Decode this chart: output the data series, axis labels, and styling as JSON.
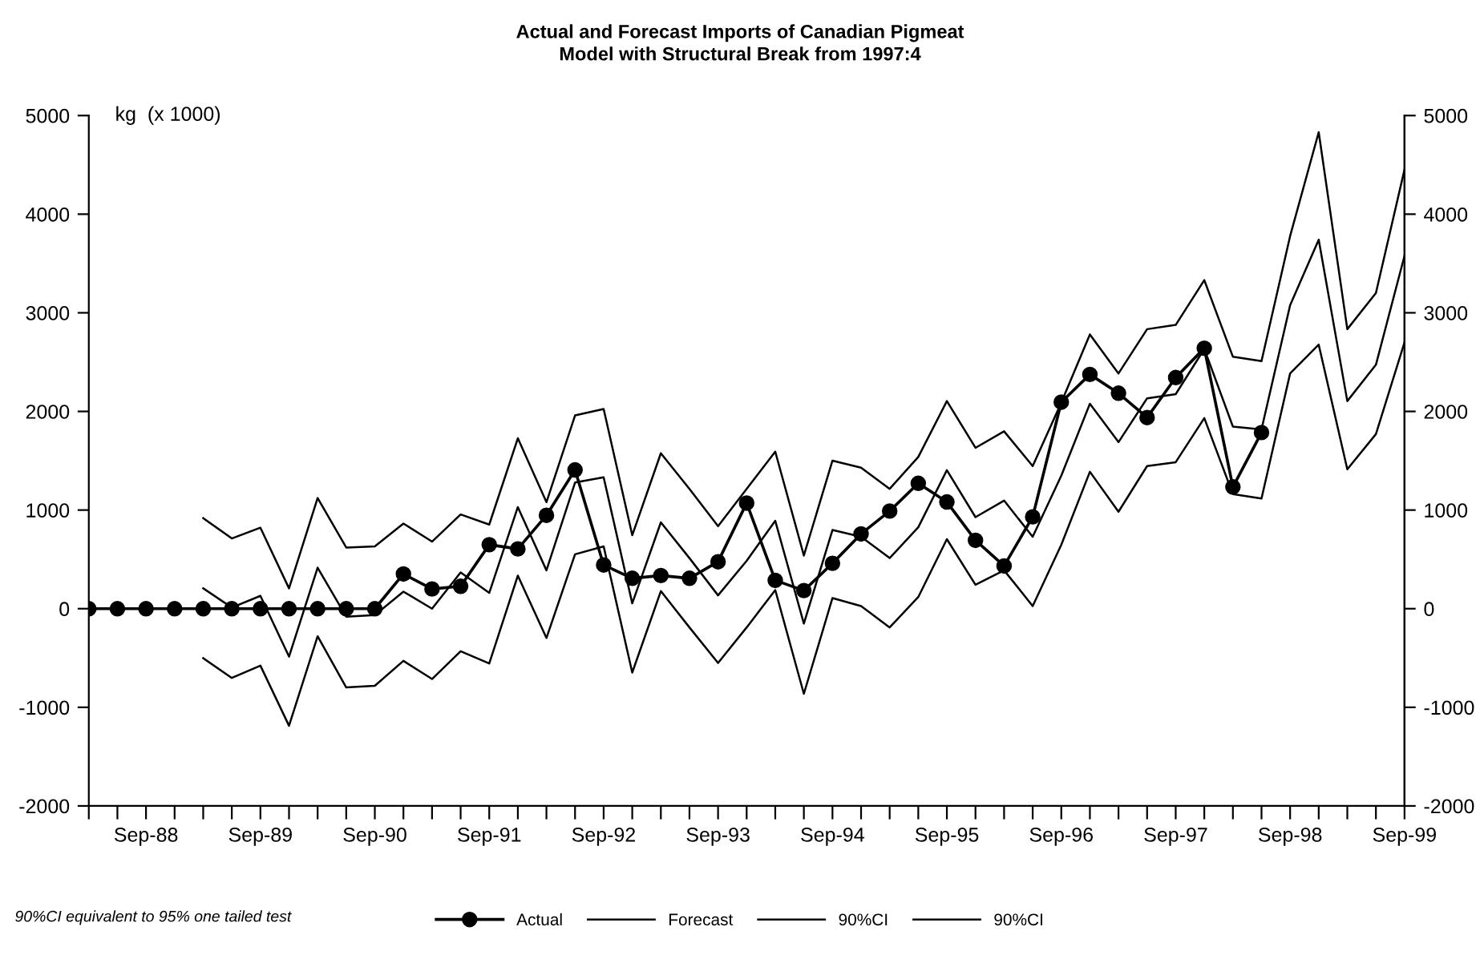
{
  "chart_data": {
    "type": "line",
    "title": "Actual and Forecast Imports of Canadian Pigmeat",
    "subtitle": "Model with Structural Break from 1997:4",
    "ylabel": "kg  (x 1000)",
    "annotations": [
      "90%CI equivalent to 95% one tailed test"
    ],
    "categories": [
      null,
      null,
      "Sep-88",
      null,
      null,
      null,
      "Sep-89",
      null,
      null,
      null,
      "Sep-90",
      null,
      null,
      null,
      "Sep-91",
      null,
      null,
      null,
      "Sep-92",
      null,
      null,
      null,
      "Sep-93",
      null,
      null,
      null,
      "Sep-94",
      null,
      null,
      null,
      "Sep-95",
      null,
      null,
      null,
      "Sep-96",
      null,
      null,
      null,
      "Sep-97",
      null,
      null,
      null,
      "Sep-98",
      null,
      null,
      null,
      "Sep-99"
    ],
    "series": [
      {
        "name": "Actual",
        "color": "#000000",
        "marker": "circle",
        "values": [
          0,
          0,
          0,
          0,
          0,
          0,
          0,
          0,
          0,
          0,
          0,
          352,
          200,
          227,
          649,
          606,
          947,
          1407,
          443,
          308,
          336,
          308,
          476,
          1071,
          287,
          184,
          460,
          758,
          990,
          1271,
          1082,
          693,
          433,
          931,
          2094,
          2375,
          2185,
          1938,
          2343,
          2641,
          1234,
          1786,
          null,
          null,
          null,
          null,
          null
        ]
      },
      {
        "name": "Forecast",
        "color": "#000000",
        "values": [
          null,
          null,
          null,
          null,
          206,
          11,
          130,
          -486,
          416,
          -81,
          -65,
          173,
          0,
          368,
          160,
          1030,
          389,
          1279,
          1333,
          54,
          875,
          513,
          135,
          486,
          891,
          -151,
          798,
          729,
          513,
          826,
          1404,
          928,
          1096,
          729,
          1349,
          2078,
          1689,
          2133,
          2175,
          2634,
          1846,
          1818,
          3077,
          3741,
          2105,
          2473,
          3579
        ]
      },
      {
        "name": "90%CI",
        "color": "#000000",
        "values": [
          null,
          null,
          null,
          null,
          918,
          712,
          821,
          206,
          1122,
          620,
          632,
          863,
          680,
          955,
          853,
          1728,
          1080,
          1959,
          2024,
          745,
          1576,
          1215,
          837,
          1215,
          1592,
          539,
          1501,
          1430,
          1215,
          1538,
          2105,
          1631,
          1798,
          1446,
          2089,
          2781,
          2385,
          2834,
          2877,
          3331,
          2554,
          2510,
          3778,
          4831,
          2834,
          3200,
          4453
        ]
      },
      {
        "name": "90%CI",
        "color": "#000000",
        "values": [
          null,
          null,
          null,
          null,
          -502,
          -702,
          -578,
          -1187,
          -280,
          -799,
          -782,
          -529,
          -713,
          -432,
          -556,
          335,
          -297,
          551,
          632,
          -648,
          178,
          -190,
          -551,
          -190,
          189,
          -863,
          108,
          27,
          -190,
          118,
          705,
          243,
          389,
          27,
          648,
          1388,
          983,
          1446,
          1485,
          1932,
          1161,
          1117,
          2385,
          2677,
          1414,
          1770,
          2700
        ]
      }
    ],
    "ylim": [
      -2000,
      5000
    ],
    "yticks": [
      -2000,
      -1000,
      0,
      1000,
      2000,
      3000,
      4000,
      5000
    ],
    "y2lim": [
      -2000,
      5000
    ],
    "y2ticks": [
      -2000,
      -1000,
      0,
      1000,
      2000,
      3000,
      4000,
      5000
    ],
    "line_style": "solid",
    "legend": "bottom"
  }
}
